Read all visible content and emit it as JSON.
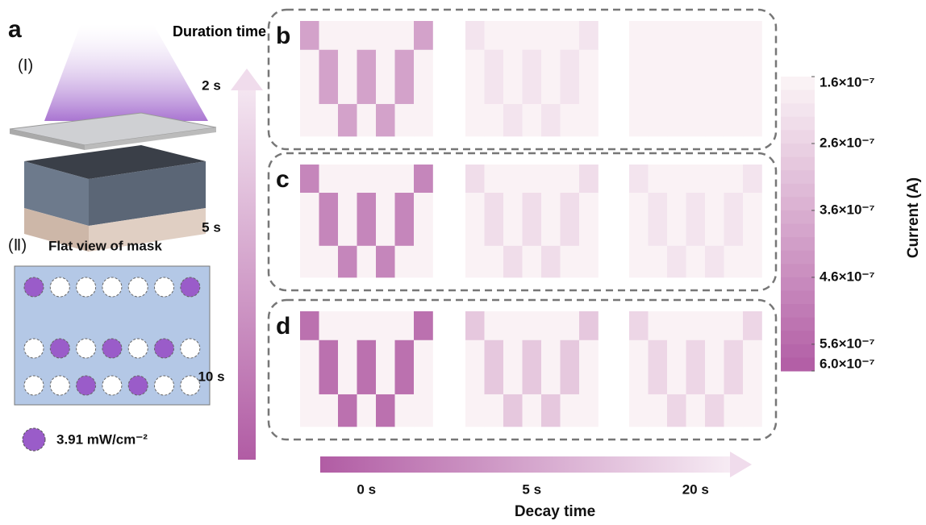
{
  "panel_a": {
    "label": "a",
    "part1": "(Ⅰ)",
    "part2": "(Ⅱ)",
    "mask_title": "Flat view of mask",
    "intensity": "3.91 mW/cm⁻²"
  },
  "chart_data": {
    "type": "heatmap",
    "y_label": "Duration time",
    "x_label": "Decay time",
    "decay_times": [
      "0 s",
      "5 s",
      "20 s"
    ],
    "colormap": [
      "#fcf5f7",
      "#b15ca4"
    ],
    "colorbar": {
      "label": "Current (A)",
      "lim": [
        1.6e-07,
        6e-07
      ],
      "ticks": [
        {
          "value": 1.6e-07,
          "label": "1.6×10⁻⁷"
        },
        {
          "value": 2.6e-07,
          "label": "2.6×10⁻⁷"
        },
        {
          "value": 3.6e-07,
          "label": "3.6×10⁻⁷"
        },
        {
          "value": 4.6e-07,
          "label": "4.6×10⁻⁷"
        },
        {
          "value": 5.6e-07,
          "label": "5.6×10⁻⁷"
        },
        {
          "value": 6e-07,
          "label": "6.0×10⁻⁷"
        }
      ]
    },
    "panels": [
      {
        "label": "b",
        "duration": "2 s",
        "maps": [
          [
            [
              4e-07,
              1.7e-07,
              1.7e-07,
              1.7e-07,
              1.7e-07,
              1.7e-07,
              4e-07
            ],
            [
              1.7e-07,
              4e-07,
              1.7e-07,
              4e-07,
              1.7e-07,
              4e-07,
              1.7e-07
            ],
            [
              1.7e-07,
              1.7e-07,
              4e-07,
              1.7e-07,
              4e-07,
              1.7e-07,
              1.7e-07
            ]
          ],
          [
            [
              2.1e-07,
              1.7e-07,
              1.7e-07,
              1.7e-07,
              1.7e-07,
              1.7e-07,
              2.1e-07
            ],
            [
              1.7e-07,
              2.1e-07,
              1.7e-07,
              2.1e-07,
              1.7e-07,
              2.1e-07,
              1.7e-07
            ],
            [
              1.7e-07,
              1.7e-07,
              2.1e-07,
              1.7e-07,
              2.1e-07,
              1.7e-07,
              1.7e-07
            ]
          ],
          [
            [
              1.7e-07,
              1.7e-07,
              1.7e-07,
              1.7e-07,
              1.7e-07,
              1.7e-07,
              1.7e-07
            ],
            [
              1.7e-07,
              1.7e-07,
              1.7e-07,
              1.7e-07,
              1.7e-07,
              1.7e-07,
              1.7e-07
            ],
            [
              1.7e-07,
              1.7e-07,
              1.7e-07,
              1.7e-07,
              1.7e-07,
              1.7e-07,
              1.7e-07
            ]
          ]
        ]
      },
      {
        "label": "c",
        "duration": "5 s",
        "maps": [
          [
            [
              4.8e-07,
              1.7e-07,
              1.7e-07,
              1.7e-07,
              1.7e-07,
              1.7e-07,
              4.8e-07
            ],
            [
              1.7e-07,
              4.8e-07,
              1.7e-07,
              4.8e-07,
              1.7e-07,
              4.8e-07,
              1.7e-07
            ],
            [
              1.7e-07,
              1.7e-07,
              4.8e-07,
              1.7e-07,
              4.8e-07,
              1.7e-07,
              1.7e-07
            ]
          ],
          [
            [
              2.3e-07,
              1.7e-07,
              1.7e-07,
              1.7e-07,
              1.7e-07,
              1.7e-07,
              2.3e-07
            ],
            [
              1.7e-07,
              2.3e-07,
              1.7e-07,
              2.3e-07,
              1.7e-07,
              2.3e-07,
              1.7e-07
            ],
            [
              1.7e-07,
              1.7e-07,
              2.3e-07,
              1.7e-07,
              2.3e-07,
              1.7e-07,
              1.7e-07
            ]
          ],
          [
            [
              2.1e-07,
              1.7e-07,
              1.7e-07,
              1.7e-07,
              1.7e-07,
              1.7e-07,
              2.1e-07
            ],
            [
              1.7e-07,
              2.1e-07,
              1.7e-07,
              2.1e-07,
              1.7e-07,
              2.1e-07,
              1.7e-07
            ],
            [
              1.7e-07,
              1.7e-07,
              2.1e-07,
              1.7e-07,
              2.1e-07,
              1.7e-07,
              1.7e-07
            ]
          ]
        ]
      },
      {
        "label": "d",
        "duration": "10 s",
        "maps": [
          [
            [
              5.4e-07,
              1.7e-07,
              1.7e-07,
              1.7e-07,
              1.7e-07,
              1.7e-07,
              5.4e-07
            ],
            [
              1.7e-07,
              5.4e-07,
              1.7e-07,
              5.4e-07,
              1.7e-07,
              5.4e-07,
              1.7e-07
            ],
            [
              1.7e-07,
              1.7e-07,
              5.4e-07,
              1.7e-07,
              5.4e-07,
              1.7e-07,
              1.7e-07
            ]
          ],
          [
            [
              2.9e-07,
              1.7e-07,
              1.7e-07,
              1.7e-07,
              1.7e-07,
              1.7e-07,
              2.9e-07
            ],
            [
              1.7e-07,
              2.9e-07,
              1.7e-07,
              2.9e-07,
              1.7e-07,
              2.9e-07,
              1.7e-07
            ],
            [
              1.7e-07,
              1.7e-07,
              2.9e-07,
              1.7e-07,
              2.9e-07,
              1.7e-07,
              1.7e-07
            ]
          ],
          [
            [
              2.5e-07,
              1.7e-07,
              1.7e-07,
              1.7e-07,
              1.7e-07,
              1.7e-07,
              2.5e-07
            ],
            [
              1.7e-07,
              2.5e-07,
              1.7e-07,
              2.5e-07,
              1.7e-07,
              2.5e-07,
              1.7e-07
            ],
            [
              1.7e-07,
              1.7e-07,
              2.5e-07,
              1.7e-07,
              2.5e-07,
              1.7e-07,
              1.7e-07
            ]
          ]
        ]
      }
    ]
  }
}
